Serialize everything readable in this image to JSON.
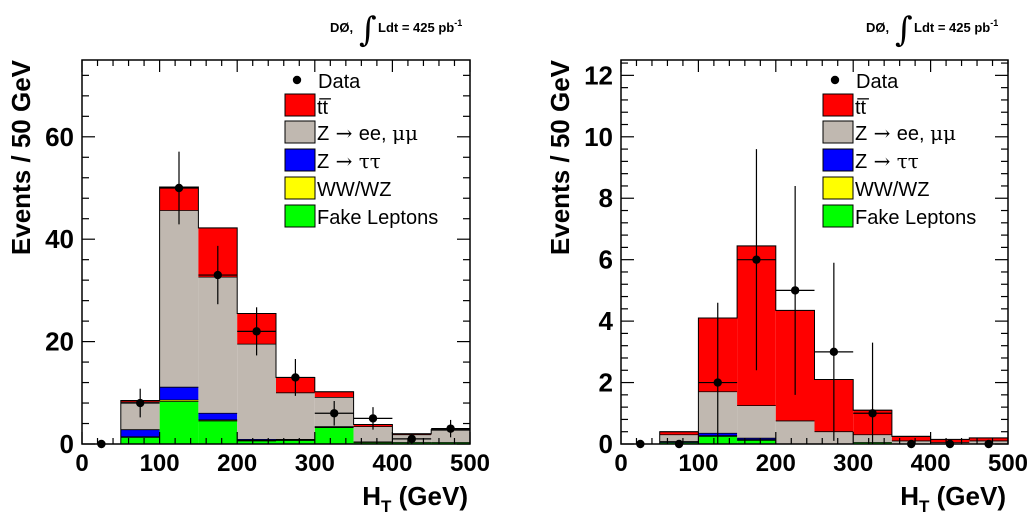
{
  "chart_data": [
    {
      "type": "bar",
      "stacked": true,
      "header": "DØ,",
      "lumi": "Ldt = 425 pb",
      "lumi_exp": "-1",
      "xlabel": "H",
      "xlabel_sub": "T",
      "xlabel_unit": " (GeV)",
      "ylabel": "Events / 50 GeV",
      "xlim": [
        0,
        500
      ],
      "ylim": [
        0,
        75
      ],
      "x_ticks": [
        0,
        100,
        200,
        300,
        400,
        500
      ],
      "y_ticks": [
        0,
        20,
        40,
        60
      ],
      "bin_edges": [
        0,
        50,
        100,
        150,
        200,
        250,
        300,
        350,
        400,
        450,
        500
      ],
      "legend": {
        "data": "Data",
        "ttbar": "tt̅",
        "zll_a": "Z",
        "zll_b": " → ",
        "zll_c": "ee, ",
        "zll_d": "μμ",
        "ztt_a": "Z",
        "ztt_b": " → ",
        "ztt_c": "ττ",
        "ww": "WW/WZ",
        "fake": "Fake Leptons"
      },
      "series": [
        {
          "key": "fake",
          "color": "#00ff00",
          "values": [
            0,
            1.3,
            8.3,
            4.5,
            0.6,
            0.7,
            3.2,
            0.3,
            0.3,
            0.3
          ]
        },
        {
          "key": "ww",
          "color": "#ffff00",
          "values": [
            0,
            0.1,
            0.3,
            0.2,
            0.1,
            0.1,
            0.1,
            0.1,
            0,
            0
          ]
        },
        {
          "key": "ztt",
          "color": "#0000ff",
          "values": [
            0,
            1.4,
            2.5,
            1.3,
            0.2,
            0.1,
            0.1,
            0,
            0,
            0
          ]
        },
        {
          "key": "zll",
          "color": "#c0b8b0",
          "values": [
            0,
            5.4,
            34.5,
            26.6,
            18.6,
            9.1,
            5.7,
            3.0,
            1.5,
            2.4
          ]
        },
        {
          "key": "ttbar",
          "color": "#ff0000",
          "values": [
            0,
            0.3,
            4.6,
            9.6,
            6.0,
            3.0,
            1.1,
            0.4,
            0.2,
            0.1
          ]
        }
      ],
      "data_points": {
        "x": [
          25,
          75,
          125,
          175,
          225,
          275,
          325,
          375,
          425,
          475
        ],
        "y": [
          0,
          8,
          50,
          33,
          22,
          13,
          6,
          5,
          1,
          3
        ],
        "err": [
          0,
          2.8,
          7.1,
          5.7,
          4.7,
          3.6,
          2.4,
          2.2,
          1,
          1.7
        ]
      }
    },
    {
      "type": "bar",
      "stacked": true,
      "header": "DØ,",
      "lumi": "Ldt = 425 pb",
      "lumi_exp": "-1",
      "xlabel": "H",
      "xlabel_sub": "T",
      "xlabel_unit": " (GeV)",
      "ylabel": "Events / 50 GeV",
      "xlim": [
        0,
        500
      ],
      "ylim": [
        0,
        12.5
      ],
      "x_ticks": [
        0,
        100,
        200,
        300,
        400,
        500
      ],
      "y_ticks": [
        0,
        2,
        4,
        6,
        8,
        10,
        12
      ],
      "bin_edges": [
        0,
        50,
        100,
        150,
        200,
        250,
        300,
        350,
        400,
        450,
        500
      ],
      "legend": {
        "data": "Data",
        "ttbar": "tt̅",
        "zll_a": "Z",
        "zll_b": " → ",
        "zll_c": "ee, ",
        "zll_d": "μμ",
        "ztt_a": "Z",
        "ztt_b": " → ",
        "ztt_c": "ττ",
        "ww": "WW/WZ",
        "fake": "Fake Leptons"
      },
      "series": [
        {
          "key": "fake",
          "color": "#00ff00",
          "values": [
            0,
            0.05,
            0.25,
            0.12,
            0,
            0,
            0.05,
            0,
            0,
            0
          ]
        },
        {
          "key": "ww",
          "color": "#ffff00",
          "values": [
            0,
            0,
            0.02,
            0.02,
            0,
            0,
            0,
            0,
            0,
            0
          ]
        },
        {
          "key": "ztt",
          "color": "#0000ff",
          "values": [
            0,
            0.03,
            0.08,
            0.05,
            0,
            0,
            0,
            0,
            0,
            0
          ]
        },
        {
          "key": "zll",
          "color": "#c0b8b0",
          "values": [
            0,
            0.22,
            1.35,
            1.06,
            0.75,
            0.4,
            0.25,
            0.1,
            0.05,
            0.1
          ]
        },
        {
          "key": "ttbar",
          "color": "#ff0000",
          "values": [
            0,
            0.1,
            2.4,
            5.2,
            3.6,
            1.7,
            0.8,
            0.15,
            0.1,
            0.1
          ]
        }
      ],
      "data_points": {
        "x": [
          25,
          75,
          125,
          175,
          225,
          275,
          325,
          375,
          425,
          475
        ],
        "y": [
          0,
          0,
          2,
          6,
          5,
          3,
          1,
          0,
          0,
          0
        ],
        "err": [
          0,
          0,
          2.6,
          3.6,
          3.4,
          2.9,
          2.3,
          0,
          0,
          0
        ]
      }
    }
  ]
}
